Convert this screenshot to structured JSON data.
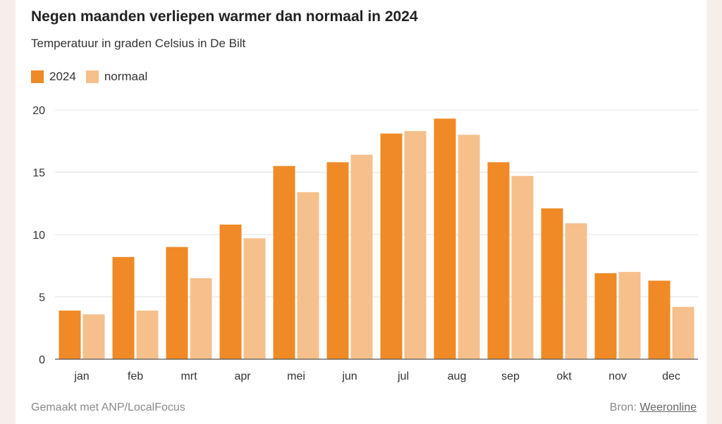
{
  "header": {
    "title": "Negen maanden verliepen warmer dan normaal in 2024",
    "subtitle": "Temperatuur in graden Celsius in De Bilt"
  },
  "footer": {
    "made_with": "Gemaakt met ANP/LocalFocus",
    "source_label": "Bron:",
    "source_link": "Weeronline"
  },
  "colors": {
    "series_2024": "#ef8a26",
    "series_normaal": "#f5c08c",
    "grid": "#e2e2e2",
    "axis": "#555555"
  },
  "chart_data": {
    "type": "bar",
    "title": "Negen maanden verliepen warmer dan normaal in 2024",
    "subtitle": "Temperatuur in graden Celsius in De Bilt",
    "categories": [
      "jan",
      "feb",
      "mrt",
      "apr",
      "mei",
      "jun",
      "jul",
      "aug",
      "sep",
      "okt",
      "nov",
      "dec"
    ],
    "series": [
      {
        "name": "2024",
        "values": [
          3.9,
          8.2,
          9.0,
          10.8,
          15.5,
          15.8,
          18.1,
          19.3,
          15.8,
          12.1,
          6.9,
          6.3
        ]
      },
      {
        "name": "normaal",
        "values": [
          3.6,
          3.9,
          6.5,
          9.7,
          13.4,
          16.4,
          18.3,
          18.0,
          14.7,
          10.9,
          7.0,
          4.2
        ]
      }
    ],
    "ylim": [
      0,
      20
    ],
    "yticks": [
      0,
      5,
      10,
      15,
      20
    ],
    "grid": true,
    "legend_position": "top-left"
  }
}
